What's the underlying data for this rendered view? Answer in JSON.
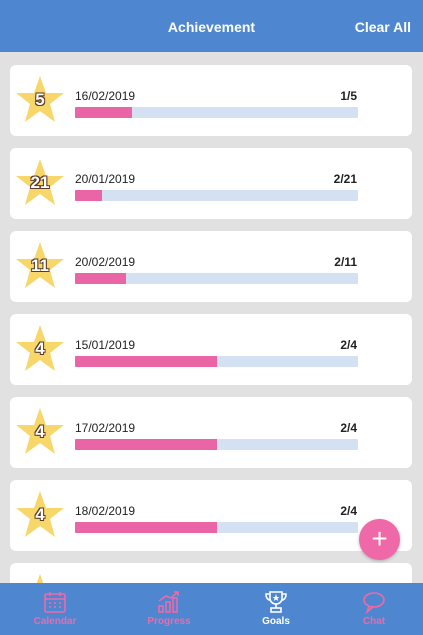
{
  "header": {
    "title": "Achievement",
    "clear_all": "Clear All"
  },
  "achievements": [
    {
      "goal": "5",
      "date": "16/02/2019",
      "progress_text": "1/5",
      "done": 1,
      "total": 5
    },
    {
      "goal": "21",
      "date": "20/01/2019",
      "progress_text": "2/21",
      "done": 2,
      "total": 21
    },
    {
      "goal": "11",
      "date": "20/02/2019",
      "progress_text": "2/11",
      "done": 2,
      "total": 11
    },
    {
      "goal": "4",
      "date": "15/01/2019",
      "progress_text": "2/4",
      "done": 2,
      "total": 4
    },
    {
      "goal": "4",
      "date": "17/02/2019",
      "progress_text": "2/4",
      "done": 2,
      "total": 4
    },
    {
      "goal": "4",
      "date": "18/02/2019",
      "progress_text": "2/4",
      "done": 2,
      "total": 4
    }
  ],
  "fab": {
    "icon": "plus-icon",
    "label": "+"
  },
  "tabs": [
    {
      "label": "Calendar",
      "icon": "calendar-icon",
      "active": false
    },
    {
      "label": "Progress",
      "icon": "chart-icon",
      "active": false
    },
    {
      "label": "Goals",
      "icon": "trophy-icon",
      "active": true
    },
    {
      "label": "Chat",
      "icon": "chat-bubble-icon",
      "active": false
    }
  ],
  "colors": {
    "header": "#4e87d0",
    "background": "#e1e1e1",
    "bar_fill": "#e965a6",
    "bar_track": "#d4e1f2",
    "star": "#f7d66a",
    "tab_inactive": "#ef69a8",
    "tab_active": "#ffffff"
  }
}
